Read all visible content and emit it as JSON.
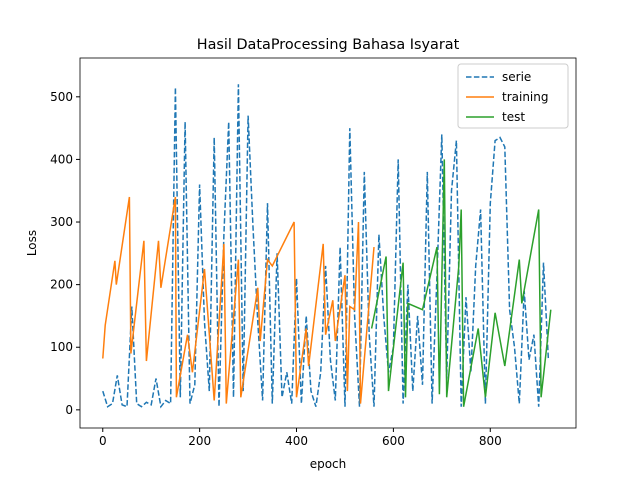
{
  "chart_data": {
    "type": "line",
    "title": "Hasil DataProcessing Bahasa Isyarat",
    "xlabel": "epoch",
    "ylabel": "Loss",
    "xlim": [
      -47,
      977
    ],
    "ylim": [
      -29,
      562
    ],
    "xticks": [
      0,
      200,
      400,
      600,
      800
    ],
    "yticks": [
      0,
      100,
      200,
      300,
      400,
      500
    ],
    "legend": "upper right",
    "series": [
      {
        "name": "serie",
        "color": "#1f77b4",
        "dashed": true,
        "x": [
          0,
          10,
          20,
          30,
          40,
          50,
          60,
          70,
          80,
          90,
          100,
          110,
          120,
          130,
          140,
          150,
          160,
          170,
          180,
          190,
          200,
          210,
          220,
          230,
          240,
          250,
          260,
          270,
          280,
          290,
          300,
          310,
          320,
          330,
          340,
          350,
          360,
          370,
          380,
          390,
          400,
          410,
          420,
          430,
          440,
          450,
          460,
          470,
          480,
          490,
          500,
          510,
          520,
          530,
          540,
          550,
          560,
          570,
          580,
          590,
          600,
          610,
          620,
          630,
          640,
          650,
          660,
          670,
          680,
          690,
          700,
          710,
          720,
          730,
          740,
          750,
          760,
          770,
          780,
          790,
          800,
          810,
          820,
          830,
          840,
          850,
          860,
          870,
          880,
          890,
          900,
          910,
          920
        ],
        "values": [
          30,
          5,
          10,
          55,
          8,
          5,
          165,
          10,
          5,
          12,
          8,
          50,
          5,
          15,
          10,
          515,
          20,
          460,
          10,
          40,
          360,
          140,
          30,
          435,
          5,
          280,
          460,
          20,
          520,
          30,
          470,
          295,
          140,
          15,
          330,
          10,
          250,
          20,
          60,
          10,
          210,
          10,
          150,
          30,
          5,
          60,
          230,
          80,
          15,
          260,
          5,
          450,
          150,
          5,
          380,
          120,
          5,
          280,
          150,
          60,
          100,
          400,
          10,
          200,
          30,
          150,
          40,
          380,
          10,
          215,
          440,
          50,
          350,
          430,
          5,
          180,
          60,
          230,
          320,
          10,
          330,
          430,
          435,
          420,
          160,
          100,
          10,
          190,
          80,
          120,
          5,
          235,
          80
        ]
      },
      {
        "name": "training",
        "color": "#ff7f0e",
        "dashed": false,
        "x": [
          0,
          5,
          25,
          28,
          55,
          58,
          85,
          90,
          115,
          120,
          150,
          152,
          175,
          185,
          210,
          230,
          250,
          255,
          280,
          285,
          320,
          325,
          340,
          350,
          395,
          400,
          420,
          425,
          455,
          460,
          475,
          480,
          500,
          505,
          510,
          520,
          528,
          532,
          560
        ],
        "values": [
          82,
          135,
          238,
          200,
          340,
          90,
          270,
          78,
          270,
          195,
          340,
          20,
          120,
          60,
          225,
          15,
          265,
          10,
          240,
          20,
          195,
          110,
          240,
          230,
          300,
          20,
          130,
          70,
          265,
          120,
          175,
          110,
          215,
          30,
          165,
          160,
          300,
          10,
          260
        ]
      },
      {
        "name": "test",
        "color": "#2ca02c",
        "dashed": false,
        "x": [
          555,
          585,
          590,
          620,
          625,
          630,
          660,
          690,
          695,
          705,
          710,
          735,
          740,
          745,
          775,
          790,
          810,
          830,
          860,
          865,
          900,
          905,
          925
        ],
        "values": [
          130,
          245,
          30,
          235,
          20,
          170,
          160,
          260,
          25,
          400,
          20,
          230,
          320,
          5,
          130,
          20,
          155,
          70,
          240,
          170,
          320,
          20,
          160
        ]
      }
    ]
  }
}
